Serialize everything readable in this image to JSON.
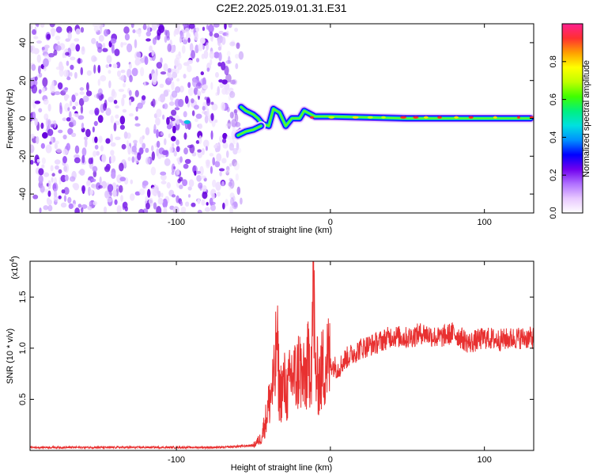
{
  "title": "C2E2.2025.019.01.31.E31",
  "chart_data": [
    {
      "type": "heatmap",
      "xlabel": "Height of straight line (km)",
      "ylabel": "Frequency (Hz)",
      "xlim": [
        -195,
        132
      ],
      "ylim": [
        -50,
        50
      ],
      "xticks": [
        -100,
        0,
        100
      ],
      "yticks": [
        -40,
        -20,
        0,
        20,
        40
      ],
      "xtick_labels": [
        "-100",
        "0",
        "100"
      ],
      "ytick_labels": [
        "-40",
        "-20",
        "0",
        "20",
        "40"
      ],
      "noise_region_x": [
        -195,
        -62
      ],
      "colorbar": {
        "label": "Normalized spectral amplitude",
        "range": [
          0,
          1
        ],
        "ticks": [
          0,
          0.2,
          0.4,
          0.6,
          0.8
        ],
        "tick_labels": [
          "0.0",
          "0.2",
          "0.4",
          "0.6",
          "0.8"
        ],
        "colors": [
          "#ffffff",
          "#e8c8ff",
          "#b070ff",
          "#7000ee",
          "#0000ff",
          "#0090ff",
          "#00e0e0",
          "#00f080",
          "#40ff00",
          "#c0ff00",
          "#ffff00",
          "#ffa000",
          "#ff3030",
          "#ff2090"
        ]
      },
      "signal_track": [
        {
          "x": -58,
          "f": 6
        },
        {
          "x": -55,
          "f": 4
        },
        {
          "x": -50,
          "f": 2
        },
        {
          "x": -47,
          "f": 0
        },
        {
          "x": -44,
          "f": -3
        },
        {
          "x": -40,
          "f": -4
        },
        {
          "x": -37,
          "f": 5
        },
        {
          "x": -33,
          "f": 3
        },
        {
          "x": -29,
          "f": -4
        },
        {
          "x": -25,
          "f": 0
        },
        {
          "x": -20,
          "f": 0
        },
        {
          "x": -17,
          "f": 4
        },
        {
          "x": -10,
          "f": 1
        },
        {
          "x": 0,
          "f": 1
        },
        {
          "x": 50,
          "f": 0
        },
        {
          "x": 100,
          "f": 0
        },
        {
          "x": 130,
          "f": 0
        }
      ],
      "signal_track_lower": [
        {
          "x": -60,
          "f": -9
        },
        {
          "x": -55,
          "f": -7
        },
        {
          "x": -50,
          "f": -6
        },
        {
          "x": -45,
          "f": -4
        }
      ]
    },
    {
      "type": "line",
      "xlabel": "Height of straight line (km)",
      "ylabel": "SNR (10 * v/v)",
      "multiplier_label": "(x10",
      "multiplier_exponent": "4",
      "xlim": [
        -195,
        132
      ],
      "ylim": [
        0,
        1.85
      ],
      "xticks": [
        -100,
        0,
        100
      ],
      "xtick_labels": [
        "-100",
        "0",
        "100"
      ],
      "yticks": [
        0.5,
        1.0,
        1.5
      ],
      "ytick_labels": [
        "0.5",
        "1.0",
        "1.5"
      ],
      "series": [
        {
          "color": "#e83030",
          "points": [
            [
              -195,
              0.03
            ],
            [
              -150,
              0.03
            ],
            [
              -100,
              0.03
            ],
            [
              -70,
              0.03
            ],
            [
              -60,
              0.04
            ],
            [
              -50,
              0.05
            ],
            [
              -45,
              0.12
            ],
            [
              -42,
              0.3
            ],
            [
              -40,
              0.45
            ],
            [
              -38,
              0.6
            ],
            [
              -36,
              0.7
            ],
            [
              -35,
              1.15
            ],
            [
              -33,
              0.55
            ],
            [
              -30,
              0.65
            ],
            [
              -28,
              0.55
            ],
            [
              -25,
              0.75
            ],
            [
              -22,
              0.7
            ],
            [
              -20,
              0.85
            ],
            [
              -18,
              0.65
            ],
            [
              -15,
              0.8
            ],
            [
              -12,
              0.95
            ],
            [
              -11,
              1.85
            ],
            [
              -10,
              0.75
            ],
            [
              -7,
              0.7
            ],
            [
              -5,
              0.8
            ],
            [
              -2,
              0.9
            ],
            [
              0,
              0.85
            ],
            [
              5,
              0.8
            ],
            [
              10,
              0.9
            ],
            [
              15,
              0.95
            ],
            [
              20,
              1.0
            ],
            [
              30,
              1.05
            ],
            [
              40,
              1.12
            ],
            [
              50,
              1.1
            ],
            [
              60,
              1.15
            ],
            [
              70,
              1.1
            ],
            [
              80,
              1.15
            ],
            [
              90,
              1.05
            ],
            [
              100,
              1.1
            ],
            [
              110,
              1.08
            ],
            [
              120,
              1.1
            ],
            [
              130,
              1.1
            ]
          ]
        }
      ]
    }
  ]
}
